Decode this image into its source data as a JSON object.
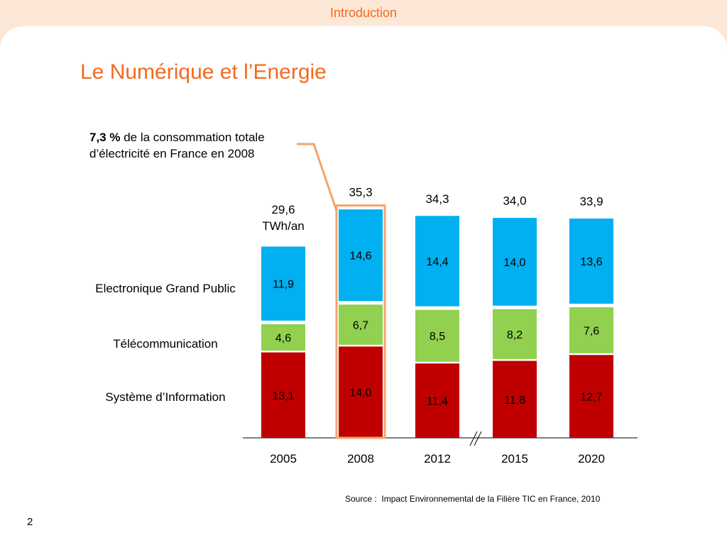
{
  "header": {
    "section": "Introduction"
  },
  "page_title": "Le Numérique et l’Energie",
  "note": {
    "highlight": "7,3 %",
    "line1_rest": " de la consommation totale",
    "line2": "d’électricité en France en 2008"
  },
  "source": "Source :  Impact Environnemental de la Filière TIC en France, 2010",
  "page_number": "2",
  "colors": {
    "accent": "#f26a21",
    "systeme": "#c00000",
    "telecom": "#92d050",
    "electronique": "#00b0f0",
    "highlight_box": "#f4a46c"
  },
  "chart_data": {
    "type": "bar",
    "stacked": true,
    "categories": [
      "2005",
      "2008",
      "2012",
      "2015",
      "2020"
    ],
    "series": [
      {
        "name": "Système d’Information",
        "values": [
          13.1,
          14.0,
          11.4,
          11.8,
          12.7
        ],
        "labels": [
          "13,1",
          "14,0",
          "11,4",
          "11,8",
          "12,7"
        ],
        "color": "#c00000"
      },
      {
        "name": "Télécommunication",
        "values": [
          4.6,
          6.7,
          8.5,
          8.2,
          7.6
        ],
        "labels": [
          "4,6",
          "6,7",
          "8,5",
          "8,2",
          "7,6"
        ],
        "color": "#92d050"
      },
      {
        "name": "Electronique Grand Public",
        "values": [
          11.9,
          14.6,
          14.4,
          14.0,
          13.6
        ],
        "labels": [
          "11,9",
          "14,6",
          "14,4",
          "14,0",
          "13,6"
        ],
        "color": "#00b0f0"
      }
    ],
    "totals": [
      "29,6",
      "35,3",
      "34,3",
      "34,0",
      "33,9"
    ],
    "total_values": [
      29.6,
      35.3,
      34.3,
      34.0,
      33.9
    ],
    "unit": "TWh/an",
    "highlighted_category": "2008",
    "axis_break_between": [
      "2012",
      "2015"
    ]
  }
}
